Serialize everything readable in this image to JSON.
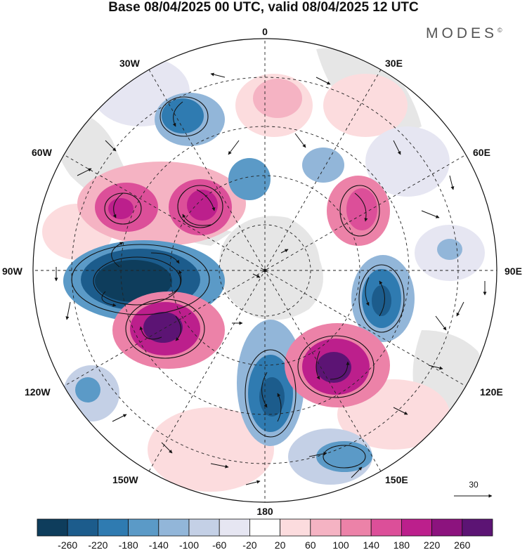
{
  "title": "Base 08/04/2025 00 UTC, valid 08/04/2025 12 UTC",
  "brand": {
    "name": "MODES",
    "mark": "©"
  },
  "map": {
    "projection": "south-polar-stereographic",
    "longitude_labels": {
      "top": "0",
      "bottom": "180",
      "left": "90W",
      "right": "90E",
      "upper_left_1": "30W",
      "upper_left_2": "60W",
      "lower_left_1": "120W",
      "lower_left_2": "150W",
      "upper_right_1": "30E",
      "upper_right_2": "60E",
      "lower_right_1": "120E",
      "lower_right_2": "150E"
    },
    "vector_reference": "30",
    "graticule": "dashed",
    "anomaly_features": [
      {
        "kind": "positive",
        "level": 260,
        "color": "#5c1474"
      },
      {
        "kind": "positive",
        "level": 260,
        "color": "#5c1474"
      },
      {
        "kind": "negative",
        "level": -260,
        "color": "#0e3d5c"
      },
      {
        "kind": "negative",
        "level": -180,
        "color": "#2f7bb1"
      },
      {
        "kind": "negative",
        "level": -220,
        "color": "#1c5c8c"
      }
    ]
  },
  "colorbar": {
    "labels": [
      "-260",
      "-220",
      "-180",
      "-140",
      "-100",
      "-60",
      "-20",
      "20",
      "60",
      "100",
      "140",
      "180",
      "220",
      "260"
    ],
    "colors": [
      "#0e3d5c",
      "#1c5c8c",
      "#2f7bb1",
      "#5b9ac7",
      "#92b6d9",
      "#c4d0e6",
      "#e6e6f2",
      "#ffffff",
      "#fcdcde",
      "#f5b3c3",
      "#ec82a8",
      "#dc4f99",
      "#bc1f8c",
      "#8c137e",
      "#5c1474"
    ]
  }
}
